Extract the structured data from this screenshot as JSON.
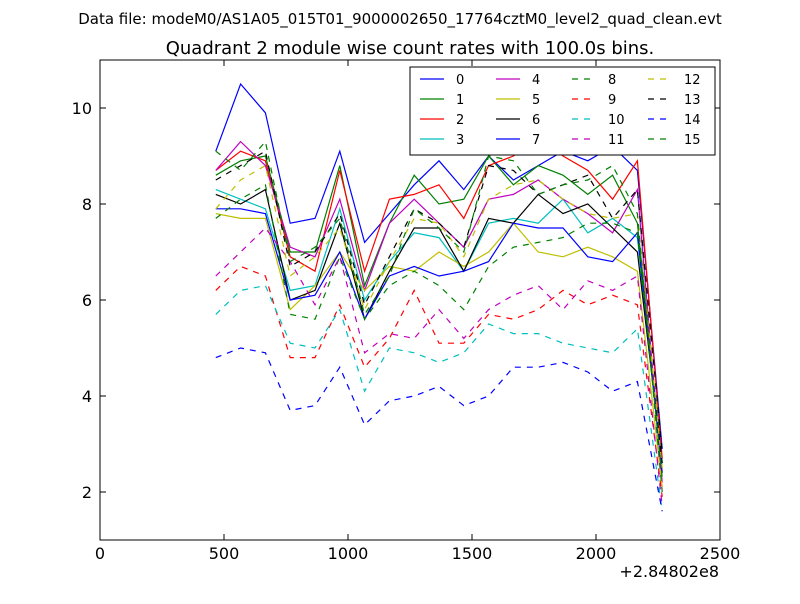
{
  "header": {
    "datafile": "Data file: modeM0/AS1A05_015T01_9000002650_17764cztM0_level2_quad_clean.evt"
  },
  "chart_data": {
    "type": "line",
    "title": "Quadrant 2 module wise count rates with 100.0s bins.",
    "xlabel": "",
    "ylabel": "",
    "x_offset_label": "+2.84802e8",
    "xlim": [
      0,
      2500
    ],
    "ylim": [
      1,
      11
    ],
    "x_ticks": [
      0,
      500,
      1000,
      1500,
      2000,
      2500
    ],
    "y_ticks": [
      2,
      4,
      6,
      8,
      10
    ],
    "x_tick_labels": [
      "0",
      "500",
      "1000",
      "1500",
      "2000",
      "2500"
    ],
    "y_tick_labels": [
      "2",
      "4",
      "6",
      "8",
      "10"
    ],
    "grid": false,
    "legend_position": "top-right",
    "x": [
      467,
      567,
      667,
      767,
      867,
      967,
      1067,
      1167,
      1267,
      1367,
      1467,
      1567,
      1667,
      1767,
      1867,
      1967,
      2067,
      2167,
      2267
    ],
    "series": [
      {
        "name": "0",
        "color": "#0000ff",
        "dash": false,
        "values": [
          9.1,
          10.5,
          9.9,
          7.6,
          7.7,
          9.1,
          7.2,
          7.8,
          8.4,
          8.9,
          8.3,
          9.0,
          8.5,
          8.8,
          9.1,
          8.9,
          9.2,
          8.7,
          2.9
        ]
      },
      {
        "name": "1",
        "color": "#008000",
        "dash": false,
        "values": [
          8.6,
          8.9,
          9.0,
          7.0,
          7.0,
          8.8,
          6.3,
          7.6,
          8.6,
          8.0,
          8.1,
          9.0,
          8.4,
          8.8,
          8.6,
          8.2,
          8.6,
          7.6,
          2.6
        ]
      },
      {
        "name": "2",
        "color": "#ff0000",
        "dash": false,
        "values": [
          8.7,
          9.1,
          8.9,
          6.9,
          6.6,
          8.7,
          6.6,
          8.1,
          8.2,
          8.4,
          7.7,
          8.8,
          9.0,
          9.4,
          9.0,
          8.7,
          8.1,
          8.9,
          2.7
        ]
      },
      {
        "name": "3",
        "color": "#00bfbf",
        "dash": false,
        "values": [
          8.3,
          8.1,
          7.9,
          6.2,
          6.3,
          7.9,
          6.0,
          6.8,
          7.4,
          7.3,
          6.6,
          7.6,
          7.7,
          7.6,
          8.1,
          7.4,
          7.7,
          7.3,
          2.4
        ]
      },
      {
        "name": "4",
        "color": "#bf00bf",
        "dash": false,
        "values": [
          8.7,
          9.3,
          8.8,
          7.1,
          6.9,
          8.1,
          6.2,
          7.6,
          8.1,
          7.6,
          7.1,
          8.1,
          8.2,
          8.5,
          8.1,
          7.8,
          7.4,
          8.3,
          2.2
        ]
      },
      {
        "name": "5",
        "color": "#bfbf00",
        "dash": false,
        "values": [
          7.8,
          7.7,
          7.7,
          5.8,
          6.3,
          7.0,
          6.2,
          6.7,
          6.6,
          7.0,
          6.7,
          7.0,
          7.6,
          7.0,
          6.9,
          7.1,
          6.9,
          6.6,
          2.1
        ]
      },
      {
        "name": "6",
        "color": "#000000",
        "dash": false,
        "values": [
          8.2,
          8.0,
          8.3,
          6.0,
          6.2,
          7.6,
          5.6,
          6.6,
          7.5,
          7.5,
          6.6,
          7.7,
          7.6,
          8.2,
          7.8,
          8.0,
          7.5,
          7.0,
          2.6
        ]
      },
      {
        "name": "7",
        "color": "#0000ff",
        "dash": false,
        "values": [
          7.9,
          7.9,
          7.8,
          6.0,
          6.1,
          7.0,
          5.6,
          6.5,
          6.7,
          6.5,
          6.6,
          6.8,
          7.6,
          7.5,
          7.5,
          6.9,
          6.8,
          7.4,
          2.4
        ]
      },
      {
        "name": "8",
        "color": "#008000",
        "dash": true,
        "values": [
          7.7,
          8.1,
          8.4,
          5.7,
          5.6,
          6.9,
          5.6,
          6.3,
          6.6,
          6.3,
          5.8,
          6.7,
          7.1,
          7.2,
          7.3,
          7.6,
          7.6,
          7.4,
          2.3
        ]
      },
      {
        "name": "9",
        "color": "#ff0000",
        "dash": true,
        "values": [
          6.2,
          6.7,
          6.5,
          4.8,
          4.8,
          5.9,
          4.6,
          5.2,
          6.2,
          5.1,
          5.1,
          5.7,
          5.6,
          5.8,
          6.2,
          5.9,
          6.1,
          5.9,
          1.9
        ]
      },
      {
        "name": "10",
        "color": "#00bfbf",
        "dash": true,
        "values": [
          5.7,
          6.2,
          6.3,
          5.1,
          5.0,
          5.8,
          4.1,
          5.0,
          4.9,
          4.7,
          4.9,
          5.5,
          5.3,
          5.3,
          5.1,
          5.0,
          4.9,
          5.4,
          1.6
        ]
      },
      {
        "name": "11",
        "color": "#bf00bf",
        "dash": true,
        "values": [
          6.5,
          7.0,
          7.5,
          6.8,
          5.9,
          6.9,
          4.9,
          5.3,
          5.2,
          5.8,
          5.2,
          5.8,
          6.1,
          6.3,
          5.8,
          6.4,
          6.2,
          6.5,
          1.7
        ]
      },
      {
        "name": "12",
        "color": "#bfbf00",
        "dash": true,
        "values": [
          7.9,
          8.5,
          8.8,
          6.5,
          6.9,
          7.5,
          5.8,
          6.8,
          7.7,
          7.6,
          6.9,
          8.1,
          8.4,
          8.5,
          8.1,
          7.8,
          7.7,
          7.8,
          2.5
        ]
      },
      {
        "name": "13",
        "color": "#000000",
        "dash": true,
        "values": [
          8.5,
          8.8,
          9.1,
          6.7,
          7.0,
          7.8,
          5.9,
          6.9,
          7.9,
          7.6,
          7.1,
          8.8,
          8.7,
          8.2,
          8.4,
          8.6,
          7.7,
          8.3,
          2.8
        ]
      },
      {
        "name": "14",
        "color": "#0000ff",
        "dash": true,
        "values": [
          4.8,
          5.0,
          4.9,
          3.7,
          3.8,
          4.6,
          3.4,
          3.9,
          4.0,
          4.2,
          3.8,
          4.0,
          4.6,
          4.6,
          4.7,
          4.5,
          4.1,
          4.3,
          1.6
        ]
      },
      {
        "name": "15",
        "color": "#008000",
        "dash": true,
        "values": [
          9.1,
          8.7,
          9.3,
          6.8,
          7.1,
          7.7,
          5.7,
          6.5,
          7.9,
          7.5,
          7.0,
          9.0,
          8.9,
          8.2,
          8.4,
          8.5,
          8.8,
          7.8,
          2.0
        ]
      }
    ]
  }
}
